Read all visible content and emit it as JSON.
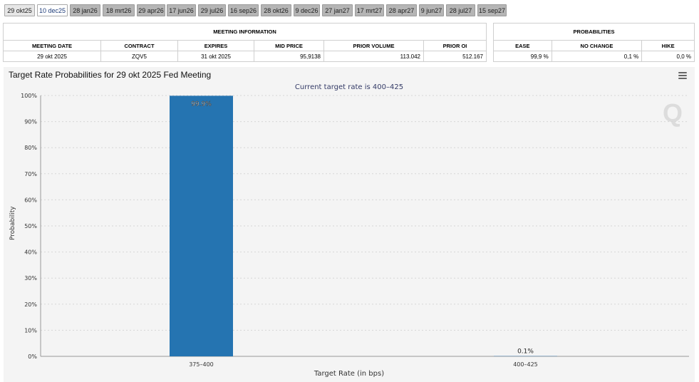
{
  "tabs": [
    "29 okt25",
    "10 dec25",
    "28 jan26",
    "18 mrt26",
    "29 apr26",
    "17 jun26",
    "29 jul26",
    "16 sep26",
    "28 okt26",
    "9 dec26",
    "27 jan27",
    "17 mrt27",
    "28 apr27",
    "9 jun27",
    "28 jul27",
    "15 sep27"
  ],
  "meeting_info": {
    "header": "MEETING INFORMATION",
    "columns": [
      "MEETING DATE",
      "CONTRACT",
      "EXPIRES",
      "MID PRICE",
      "PRIOR VOLUME",
      "PRIOR OI"
    ],
    "row": [
      "29 okt 2025",
      "ZQV5",
      "31 okt 2025",
      "95,9138",
      "113.042",
      "512.167"
    ]
  },
  "probabilities": {
    "header": "PROBABILITIES",
    "columns": [
      "EASE",
      "NO CHANGE",
      "HIKE"
    ],
    "row": [
      "99,9 %",
      "0,1 %",
      "0,0 %"
    ]
  },
  "chart_title": "Target Rate Probabilities for 29 okt 2025 Fed Meeting",
  "watermark": "Q",
  "chart_data": {
    "type": "bar",
    "subtitle": "Current target rate is 400–425",
    "categories": [
      "375–400",
      "400–425"
    ],
    "values": [
      99.9,
      0.1
    ],
    "data_labels": [
      "99.9%",
      "0.1%"
    ],
    "xlabel": "Target Rate (in bps)",
    "ylabel": "Probability",
    "ylim": [
      0,
      100
    ],
    "yticks": [
      "0%",
      "10%",
      "20%",
      "30%",
      "40%",
      "50%",
      "60%",
      "70%",
      "80%",
      "90%",
      "100%"
    ],
    "grid": true,
    "bar_color": "#2574b1"
  }
}
